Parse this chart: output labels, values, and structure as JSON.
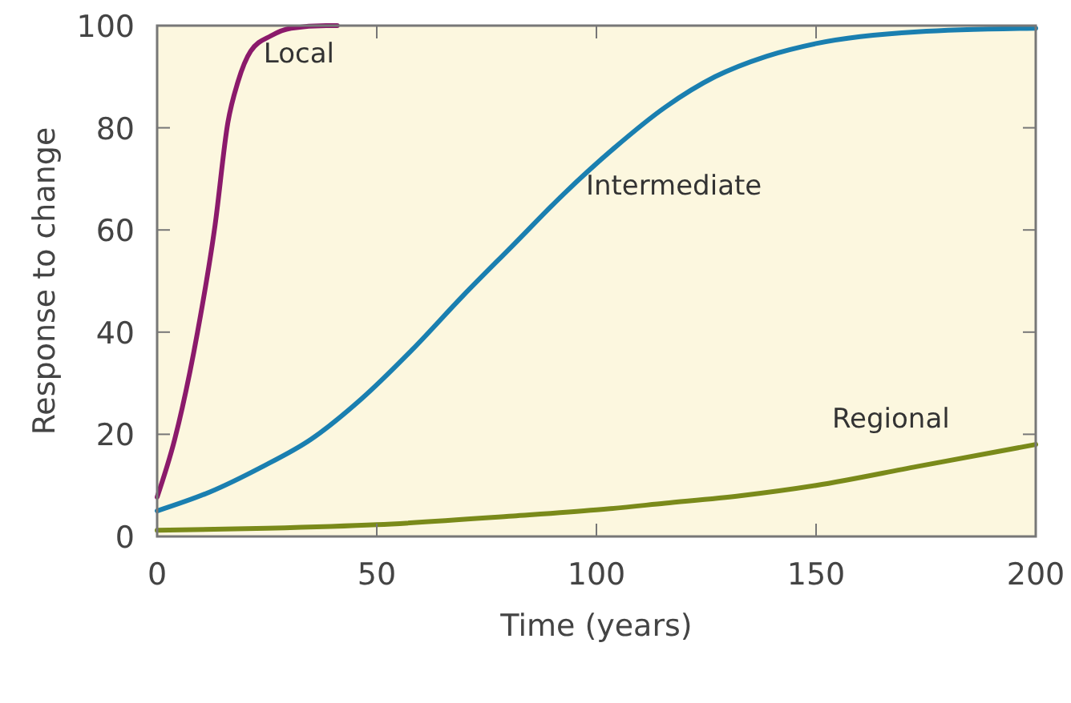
{
  "chart_data": {
    "type": "line",
    "xlabel": "Time (years)",
    "ylabel": "Response to change",
    "xlim": [
      0,
      200
    ],
    "ylim": [
      0,
      100
    ],
    "xticks": [
      0,
      50,
      100,
      150,
      200
    ],
    "yticks": [
      0,
      20,
      40,
      60,
      80,
      100
    ],
    "grid": false,
    "marker": "none",
    "line_style": "solid",
    "series": [
      {
        "name": "Local",
        "color": "#8b1a6b",
        "x": [
          0,
          4,
          9.2,
          13.2,
          16.1,
          18.4,
          21.3,
          25.9,
          30.5,
          38.5,
          41
        ],
        "values": [
          7.7,
          19,
          40,
          61,
          81,
          89,
          95,
          98,
          99.5,
          100,
          100
        ]
      },
      {
        "name": "Intermediate",
        "color": "#1a7fb0",
        "x": [
          0,
          12,
          23.6,
          35,
          46.6,
          58,
          69.5,
          81,
          92.5,
          104,
          115.6,
          127,
          138.7,
          150,
          173,
          200
        ],
        "values": [
          5,
          8.7,
          13.5,
          19,
          27,
          36.5,
          47,
          57,
          67,
          76,
          84,
          90,
          94,
          96.5,
          98.8,
          99.5
        ]
      },
      {
        "name": "Regional",
        "color": "#7a8a1a",
        "x": [
          0,
          25,
          50,
          81,
          100,
          115.6,
          133,
          150,
          173,
          200
        ],
        "values": [
          1.2,
          1.6,
          2.3,
          4,
          5.2,
          6.5,
          8,
          10,
          13.7,
          18
        ]
      }
    ]
  }
}
